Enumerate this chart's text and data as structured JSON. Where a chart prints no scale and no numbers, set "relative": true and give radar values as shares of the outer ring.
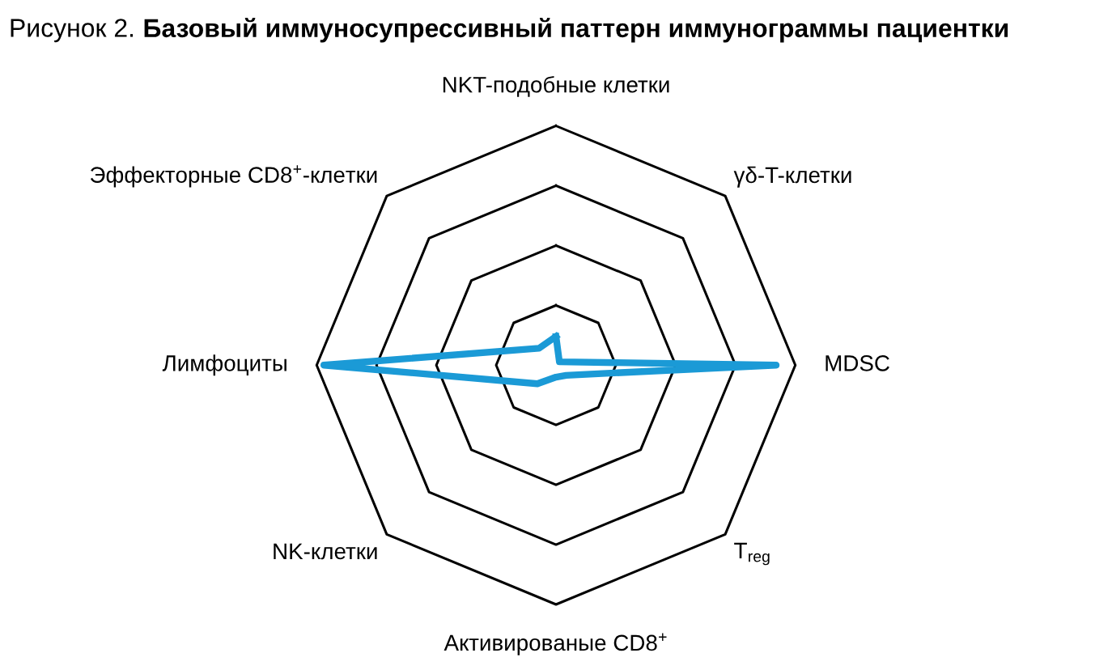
{
  "chart_data": {
    "type": "radar",
    "title": "Рисунок 2. Базовый иммуносупрессивный паттерн иммунограммы пациентки",
    "relative": true,
    "categories": [
      "NKT-подобные клетки",
      "γδ-T-клетки",
      "MDSC",
      "T$_{reg}$",
      "Активированые CD8$^{+}$",
      "NK-клетки",
      "Лимфоциты",
      "Эффекторные CD8$^{+}$-клетки"
    ],
    "series": [
      {
        "color": "#1b9ad6",
        "values": [
          0.12,
          0.02,
          0.92,
          0.06,
          0.05,
          0.11,
          0.97,
          0.1
        ]
      }
    ],
    "grid": true
  }
}
